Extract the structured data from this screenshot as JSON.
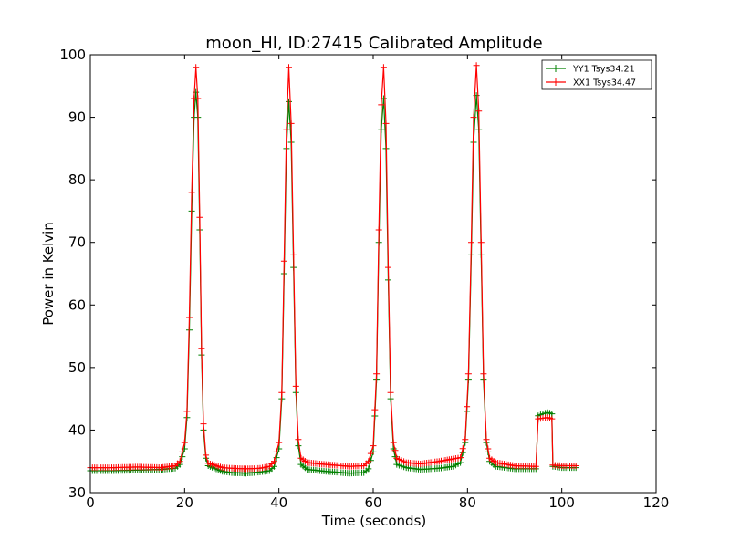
{
  "chart_data": {
    "type": "line",
    "title": "moon_HI, ID:27415 Calibrated Amplitude",
    "xlabel": "Time (seconds)",
    "ylabel": "Power in Kelvin",
    "xlim": [
      0,
      120
    ],
    "ylim": [
      30,
      100
    ],
    "xticks": [
      0,
      20,
      40,
      60,
      80,
      100,
      120
    ],
    "yticks": [
      30,
      40,
      50,
      60,
      70,
      80,
      90,
      100
    ],
    "grid": false,
    "legend_position": "top-right",
    "series": [
      {
        "name": "YY1 Tsys34.21",
        "color": "#008000",
        "marker": "plus",
        "points": [
          [
            0,
            33.5
          ],
          [
            5,
            33.5
          ],
          [
            10,
            33.6
          ],
          [
            15,
            33.7
          ],
          [
            18,
            33.9
          ],
          [
            19,
            34.5
          ],
          [
            20,
            37
          ],
          [
            20.5,
            42
          ],
          [
            21,
            56
          ],
          [
            21.5,
            75
          ],
          [
            22,
            90
          ],
          [
            22.4,
            94
          ],
          [
            22.8,
            90
          ],
          [
            23.2,
            72
          ],
          [
            23.6,
            52
          ],
          [
            24,
            40
          ],
          [
            24.5,
            35.5
          ],
          [
            25,
            34.3
          ],
          [
            28,
            33.4
          ],
          [
            30,
            33.2
          ],
          [
            33,
            33.1
          ],
          [
            36,
            33.3
          ],
          [
            38,
            33.5
          ],
          [
            39,
            34.2
          ],
          [
            40,
            37
          ],
          [
            40.6,
            45
          ],
          [
            41.1,
            65
          ],
          [
            41.6,
            85
          ],
          [
            42.1,
            92.5
          ],
          [
            42.6,
            86
          ],
          [
            43.1,
            66
          ],
          [
            43.6,
            46
          ],
          [
            44.1,
            37.5
          ],
          [
            44.7,
            34.5
          ],
          [
            46,
            33.7
          ],
          [
            50,
            33.4
          ],
          [
            55,
            33.1
          ],
          [
            58,
            33.2
          ],
          [
            59,
            33.8
          ],
          [
            60,
            36.5
          ],
          [
            60.7,
            48
          ],
          [
            61.2,
            70
          ],
          [
            61.7,
            88
          ],
          [
            62.2,
            93
          ],
          [
            62.7,
            85
          ],
          [
            63.2,
            64
          ],
          [
            63.7,
            45
          ],
          [
            64.3,
            37
          ],
          [
            65,
            34.5
          ],
          [
            67,
            34
          ],
          [
            70,
            33.7
          ],
          [
            74,
            33.9
          ],
          [
            77,
            34.2
          ],
          [
            78.5,
            34.8
          ],
          [
            79.5,
            38
          ],
          [
            80.2,
            48
          ],
          [
            80.8,
            68
          ],
          [
            81.3,
            86
          ],
          [
            81.9,
            93.5
          ],
          [
            82.4,
            88
          ],
          [
            82.9,
            68
          ],
          [
            83.4,
            48
          ],
          [
            84,
            38
          ],
          [
            84.7,
            35
          ],
          [
            86,
            34.2
          ],
          [
            90,
            33.8
          ],
          [
            94.5,
            33.8
          ],
          [
            95,
            42.3
          ],
          [
            96,
            42.6
          ],
          [
            97,
            42.8
          ],
          [
            97.9,
            42.6
          ],
          [
            98.1,
            34.2
          ],
          [
            100,
            34
          ],
          [
            103,
            34
          ]
        ]
      },
      {
        "name": "XX1 Tsys34.47",
        "color": "#ff0000",
        "marker": "plus",
        "points": [
          [
            0,
            34
          ],
          [
            5,
            34
          ],
          [
            10,
            34.1
          ],
          [
            15,
            34
          ],
          [
            18,
            34.3
          ],
          [
            19,
            35
          ],
          [
            20,
            38
          ],
          [
            20.5,
            43
          ],
          [
            21,
            58
          ],
          [
            21.5,
            78
          ],
          [
            22,
            93
          ],
          [
            22.4,
            98
          ],
          [
            22.8,
            93
          ],
          [
            23.2,
            74
          ],
          [
            23.6,
            53
          ],
          [
            24,
            41
          ],
          [
            24.5,
            36
          ],
          [
            25,
            34.7
          ],
          [
            28,
            34
          ],
          [
            30,
            33.9
          ],
          [
            33,
            33.8
          ],
          [
            36,
            33.9
          ],
          [
            38,
            34.2
          ],
          [
            39,
            35
          ],
          [
            40,
            38
          ],
          [
            40.6,
            46
          ],
          [
            41.1,
            67
          ],
          [
            41.6,
            88
          ],
          [
            42.1,
            98
          ],
          [
            42.6,
            89
          ],
          [
            43.1,
            68
          ],
          [
            43.6,
            47
          ],
          [
            44.1,
            38.5
          ],
          [
            44.7,
            35.5
          ],
          [
            46,
            34.8
          ],
          [
            50,
            34.5
          ],
          [
            55,
            34.2
          ],
          [
            58,
            34.3
          ],
          [
            59,
            35
          ],
          [
            60,
            37.5
          ],
          [
            60.7,
            49
          ],
          [
            61.2,
            72
          ],
          [
            61.7,
            92
          ],
          [
            62.2,
            98
          ],
          [
            62.7,
            89
          ],
          [
            63.2,
            66
          ],
          [
            63.7,
            46
          ],
          [
            64.3,
            38
          ],
          [
            65,
            35.5
          ],
          [
            67,
            34.8
          ],
          [
            70,
            34.6
          ],
          [
            74,
            35
          ],
          [
            77,
            35.4
          ],
          [
            78.5,
            35.6
          ],
          [
            79.5,
            38.5
          ],
          [
            80.2,
            49
          ],
          [
            80.8,
            70
          ],
          [
            81.3,
            90
          ],
          [
            81.9,
            98.3
          ],
          [
            82.4,
            91
          ],
          [
            82.9,
            70
          ],
          [
            83.4,
            49
          ],
          [
            84,
            38.5
          ],
          [
            84.7,
            35.5
          ],
          [
            86,
            34.8
          ],
          [
            90,
            34.3
          ],
          [
            94.5,
            34.2
          ],
          [
            95,
            41.8
          ],
          [
            96,
            41.9
          ],
          [
            97,
            42
          ],
          [
            97.9,
            41.8
          ],
          [
            98.1,
            34.4
          ],
          [
            100,
            34.3
          ],
          [
            103,
            34.3
          ]
        ]
      }
    ]
  }
}
